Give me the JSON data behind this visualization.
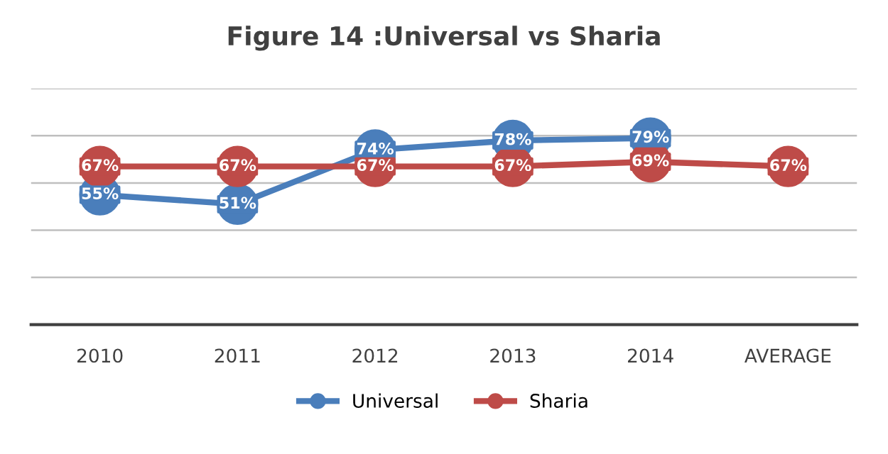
{
  "chart_data": {
    "type": "line",
    "title": "Figure 14 :Universal vs Sharia",
    "categories": [
      "2010",
      "2011",
      "2012",
      "2013",
      "2014",
      "AVERAGE"
    ],
    "series": [
      {
        "name": "Universal",
        "color": "#4a7ebb",
        "values": [
          55,
          51,
          74,
          78,
          79,
          null
        ],
        "value_labels": [
          "55%",
          "51%",
          "74%",
          "78%",
          "79%",
          null
        ]
      },
      {
        "name": "Sharia",
        "color": "#be4b48",
        "values": [
          67,
          67,
          67,
          67,
          69,
          67
        ],
        "value_labels": [
          "67%",
          "67%",
          "67%",
          "67%",
          "69%",
          "67%"
        ]
      }
    ],
    "ylim": [
      0,
      100
    ],
    "yticks": [
      {
        "value": 0,
        "label": null
      },
      {
        "value": 20,
        "label": null
      },
      {
        "value": 40,
        "label": null
      },
      {
        "value": 60,
        "label": null
      },
      {
        "value": 80,
        "label": null
      },
      {
        "value": 100,
        "label": null
      }
    ],
    "tick_labels": "x",
    "grid": "y",
    "legend": "bottom",
    "marker": "circle",
    "line_style": "solid"
  }
}
